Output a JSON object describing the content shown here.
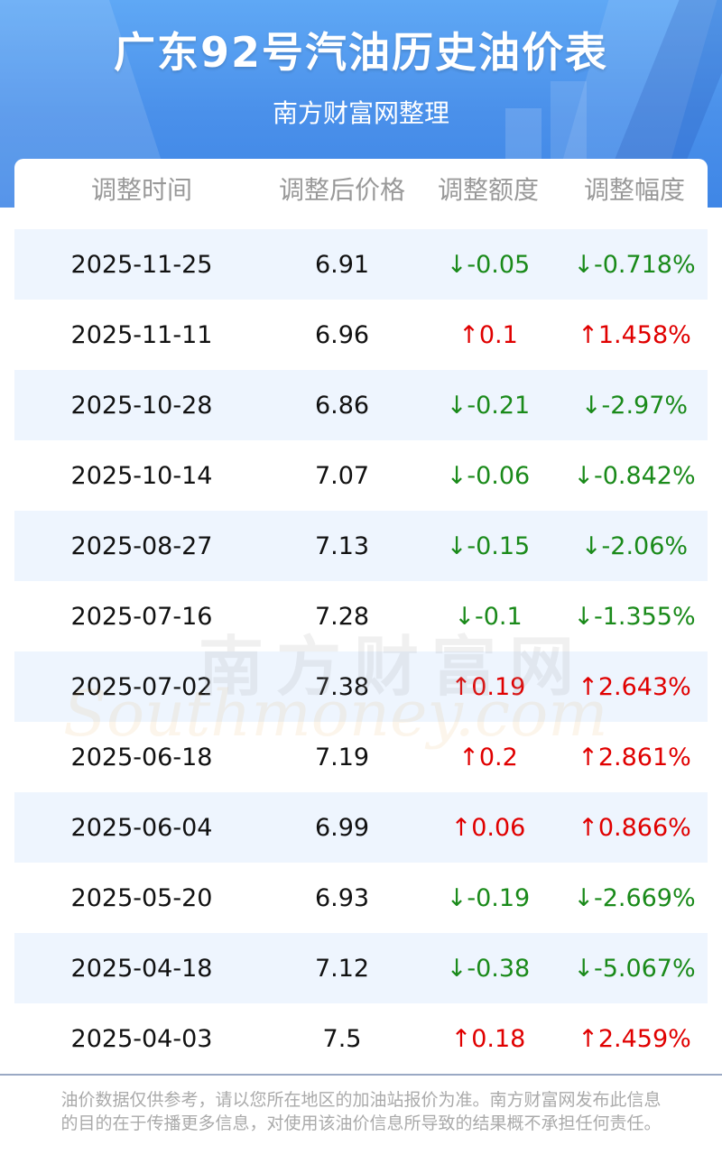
{
  "header": {
    "title": "广东92号汽油历史油价表",
    "subtitle": "南方财富网整理"
  },
  "table": {
    "columns": [
      "调整时间",
      "调整后价格",
      "调整额度",
      "调整幅度"
    ],
    "rows": [
      {
        "date": "2025-11-25",
        "price": "6.91",
        "amount": "↓-0.05",
        "rate": "↓-0.718%",
        "dir": "down"
      },
      {
        "date": "2025-11-11",
        "price": "6.96",
        "amount": "↑0.1",
        "rate": "↑1.458%",
        "dir": "up"
      },
      {
        "date": "2025-10-28",
        "price": "6.86",
        "amount": "↓-0.21",
        "rate": "↓-2.97%",
        "dir": "down"
      },
      {
        "date": "2025-10-14",
        "price": "7.07",
        "amount": "↓-0.06",
        "rate": "↓-0.842%",
        "dir": "down"
      },
      {
        "date": "2025-08-27",
        "price": "7.13",
        "amount": "↓-0.15",
        "rate": "↓-2.06%",
        "dir": "down"
      },
      {
        "date": "2025-07-16",
        "price": "7.28",
        "amount": "↓-0.1",
        "rate": "↓-1.355%",
        "dir": "down"
      },
      {
        "date": "2025-07-02",
        "price": "7.38",
        "amount": "↑0.19",
        "rate": "↑2.643%",
        "dir": "up"
      },
      {
        "date": "2025-06-18",
        "price": "7.19",
        "amount": "↑0.2",
        "rate": "↑2.861%",
        "dir": "up"
      },
      {
        "date": "2025-06-04",
        "price": "6.99",
        "amount": "↑0.06",
        "rate": "↑0.866%",
        "dir": "up"
      },
      {
        "date": "2025-05-20",
        "price": "6.93",
        "amount": "↓-0.19",
        "rate": "↓-2.669%",
        "dir": "down"
      },
      {
        "date": "2025-04-18",
        "price": "7.12",
        "amount": "↓-0.38",
        "rate": "↓-5.067%",
        "dir": "down"
      },
      {
        "date": "2025-04-03",
        "price": "7.5",
        "amount": "↑0.18",
        "rate": "↑2.459%",
        "dir": "up"
      }
    ]
  },
  "watermark": {
    "cn": "南方财富网",
    "en": "Southmoney.com"
  },
  "footer": {
    "disclaimer": "油价数据仅供参考，请以您所在地区的加油站报价为准。南方财富网发布此信息的目的在于传播更多信息，对使用该油价信息所导致的结果概不承担任何责任。"
  },
  "colors": {
    "header_blue": "#4a90ea",
    "up": "#e00000",
    "down": "#1a8a1a",
    "row_alt": "#eef5fe"
  }
}
